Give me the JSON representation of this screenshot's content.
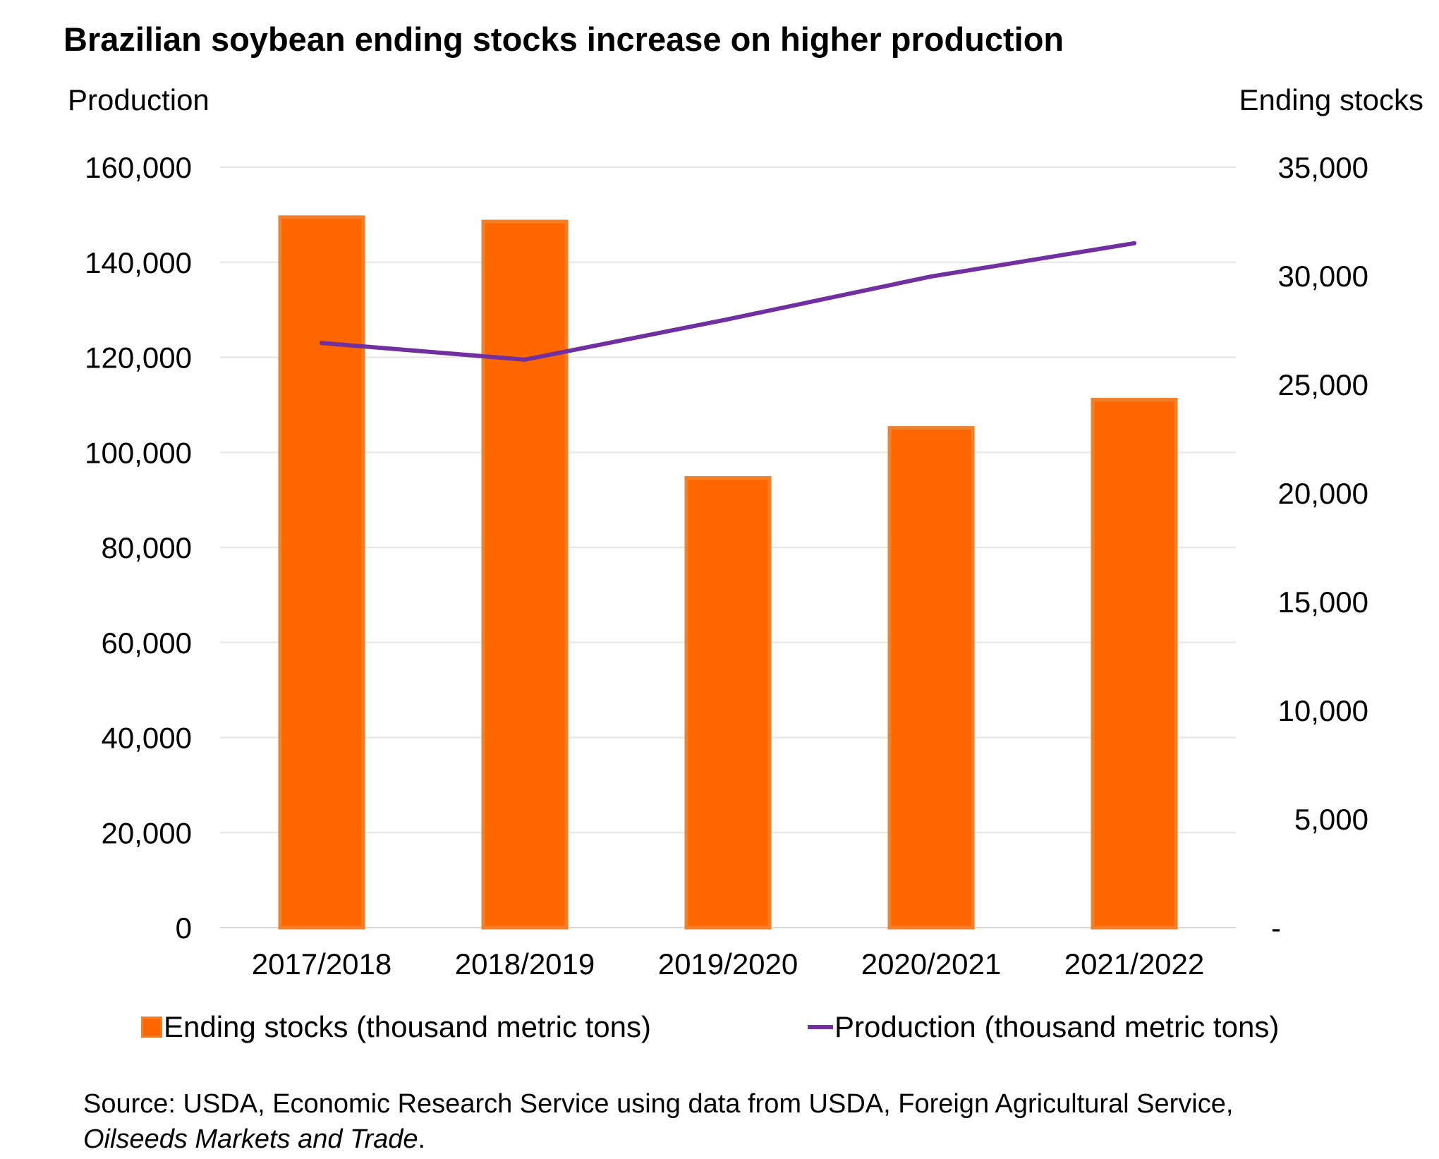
{
  "chart_data": {
    "type": "bar+line",
    "title": "Brazilian soybean ending stocks increase on higher production",
    "left_axis_label": "Production",
    "right_axis_label": "Ending stocks",
    "categories": [
      "2017/2018",
      "2018/2019",
      "2019/2020",
      "2020/2021",
      "2021/2022"
    ],
    "left_axis": {
      "ylim": [
        0,
        160000
      ],
      "ticks": [
        0,
        20000,
        40000,
        60000,
        80000,
        100000,
        120000,
        140000,
        160000
      ],
      "tick_labels": [
        "0",
        "20,000",
        "40,000",
        "60,000",
        "80,000",
        "100,000",
        "120,000",
        "140,000",
        "160,000"
      ]
    },
    "right_axis": {
      "ylim": [
        0,
        35000
      ],
      "ticks": [
        0,
        5000,
        10000,
        15000,
        20000,
        25000,
        30000,
        35000
      ],
      "tick_labels": [
        "-",
        "5,000",
        "10,000",
        "15,000",
        "20,000",
        "25,000",
        "30,000",
        "35,000"
      ]
    },
    "series": [
      {
        "name": "Ending stocks (thousand metric tons)",
        "type": "bar",
        "axis": "right",
        "color": "#FF6600",
        "edge_color": "#F27F2B",
        "values": [
          32700,
          32500,
          20700,
          23000,
          24300
        ]
      },
      {
        "name": "Production (thousand metric tons)",
        "type": "line",
        "axis": "left",
        "color": "#7030A0",
        "values": [
          123000,
          119500,
          128000,
          137000,
          144000
        ]
      }
    ],
    "grid": true,
    "legend": "bottom"
  },
  "source": {
    "text": "Source: USDA, Economic Research Service using data from USDA, Foreign Agricultural Service,",
    "italic": "Oilseeds Markets and Trade",
    "end": "."
  }
}
